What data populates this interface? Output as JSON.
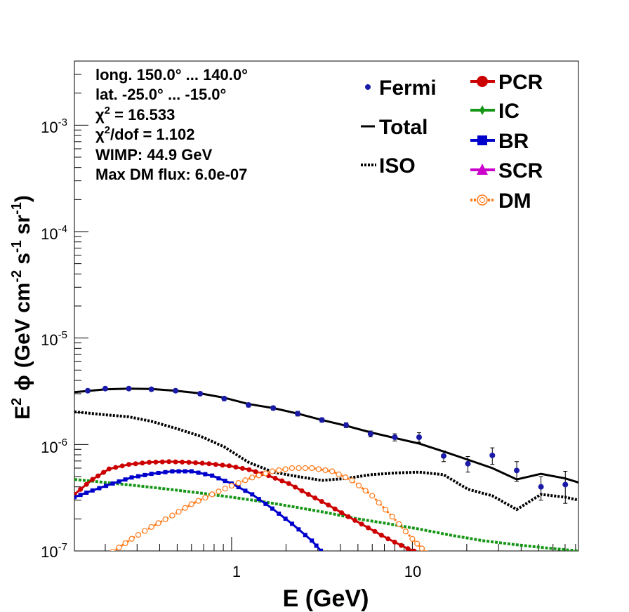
{
  "chart_data": {
    "type": "line",
    "xscale": "log",
    "yscale": "log",
    "xlim": [
      0.135,
      83
    ],
    "ylim": [
      1e-07,
      0.004
    ],
    "xlabel": "E (GeV)",
    "ylabel": {
      "prefix": "E",
      "sup1": "2",
      "phi": "ϕ",
      "gev": "(GeV cm",
      "sup2": "-2",
      "s": "s",
      "sup3": "-1",
      "sr": "sr",
      "sup4": "-1",
      "close": ")"
    },
    "x_ticks": [
      {
        "v": 1,
        "label": "1"
      },
      {
        "v": 10,
        "label": "10"
      }
    ],
    "y_ticks": [
      {
        "v": 1e-07,
        "base": "10",
        "exp": "-7"
      },
      {
        "v": 1e-06,
        "base": "10",
        "exp": "-6"
      },
      {
        "v": 1e-05,
        "base": "10",
        "exp": "-5"
      },
      {
        "v": 0.0001,
        "base": "10",
        "exp": "-4"
      },
      {
        "v": 0.001,
        "base": "10",
        "exp": "-3"
      }
    ],
    "info": {
      "line1": "long. 150.0° ... 140.0°",
      "line2": "lat. -25.0° ... -15.0°",
      "chi": "χ",
      "chi_sup": "2",
      "chi2_value": " = 16.533",
      "chi2dof_value": "/dof = 1.102",
      "wimp": "WIMP: 44.9 GeV",
      "maxdm": "Max DM flux: 6.0e-07"
    },
    "legend": {
      "fermi": "Fermi",
      "total": "Total",
      "iso": "ISO",
      "pcr": "PCR",
      "ic": "IC",
      "br": "BR",
      "scr": "SCR",
      "dm": "DM"
    },
    "colors": {
      "fermi": "#1a1aa8",
      "total": "#000000",
      "iso": "#000000",
      "pcr": "#cc0000",
      "ic": "#169616",
      "br": "#0000cc",
      "scr": "#cc00cc",
      "dm": "#ff7a1a"
    },
    "fermi": [
      {
        "x": 0.16,
        "y": 3.2e-06,
        "err": 1.2e-07
      },
      {
        "x": 0.2,
        "y": 3.35e-06,
        "err": 1.2e-07
      },
      {
        "x": 0.27,
        "y": 3.35e-06,
        "err": 1.2e-07
      },
      {
        "x": 0.36,
        "y": 3.3e-06,
        "err": 1.2e-07
      },
      {
        "x": 0.49,
        "y": 3.2e-06,
        "err": 1.2e-07
      },
      {
        "x": 0.67,
        "y": 3e-06,
        "err": 1.2e-07
      },
      {
        "x": 0.91,
        "y": 2.7e-06,
        "err": 1.2e-07
      },
      {
        "x": 1.24,
        "y": 2.35e-06,
        "err": 1e-07
      },
      {
        "x": 1.7,
        "y": 2.2e-06,
        "err": 1e-07
      },
      {
        "x": 2.32,
        "y": 1.95e-06,
        "err": 1e-07
      },
      {
        "x": 3.16,
        "y": 1.7e-06,
        "err": 8e-08
      },
      {
        "x": 4.3,
        "y": 1.52e-06,
        "err": 8e-08
      },
      {
        "x": 5.87,
        "y": 1.26e-06,
        "err": 8e-08
      },
      {
        "x": 8.0,
        "y": 1.17e-06,
        "err": 9e-08
      },
      {
        "x": 10.9,
        "y": 1.17e-06,
        "err": 1.2e-07
      },
      {
        "x": 14.9,
        "y": 7.8e-07,
        "err": 9e-08
      },
      {
        "x": 20.3,
        "y": 6.6e-07,
        "err": 1.1e-07
      },
      {
        "x": 27.7,
        "y": 7.9e-07,
        "err": 1.4e-07
      },
      {
        "x": 37.8,
        "y": 5.7e-07,
        "err": 1.2e-07
      },
      {
        "x": 51.5,
        "y": 4e-07,
        "err": 1e-07
      },
      {
        "x": 70.2,
        "y": 4.2e-07,
        "err": 1.4e-07
      }
    ],
    "total": [
      [
        0.135,
        3.1e-06
      ],
      [
        0.2,
        3.3e-06
      ],
      [
        0.27,
        3.35e-06
      ],
      [
        0.36,
        3.32e-06
      ],
      [
        0.49,
        3.2e-06
      ],
      [
        0.67,
        3.02e-06
      ],
      [
        0.91,
        2.75e-06
      ],
      [
        1.24,
        2.4e-06
      ],
      [
        1.7,
        2.2e-06
      ],
      [
        2.32,
        1.95e-06
      ],
      [
        3.16,
        1.7e-06
      ],
      [
        4.3,
        1.5e-06
      ],
      [
        5.87,
        1.3e-06
      ],
      [
        8.0,
        1.15e-06
      ],
      [
        10.9,
        1.02e-06
      ],
      [
        14.9,
        8.6e-07
      ],
      [
        20.3,
        7.2e-07
      ],
      [
        27.7,
        6e-07
      ],
      [
        37.8,
        4.7e-07
      ],
      [
        51.5,
        5.3e-07
      ],
      [
        70.2,
        4.8e-07
      ],
      [
        83,
        4.4e-07
      ]
    ],
    "iso": [
      [
        0.135,
        2.03e-06
      ],
      [
        0.2,
        1.9e-06
      ],
      [
        0.27,
        1.82e-06
      ],
      [
        0.36,
        1.65e-06
      ],
      [
        0.49,
        1.42e-06
      ],
      [
        0.67,
        1.2e-06
      ],
      [
        0.91,
        9.5e-07
      ],
      [
        1.24,
        6.8e-07
      ],
      [
        1.7,
        5.5e-07
      ],
      [
        2.32,
        5e-07
      ],
      [
        3.16,
        4.6e-07
      ],
      [
        4.3,
        4.8e-07
      ],
      [
        5.87,
        5.2e-07
      ],
      [
        8.0,
        5.4e-07
      ],
      [
        10.9,
        5.5e-07
      ],
      [
        14.9,
        5.2e-07
      ],
      [
        20.3,
        3.8e-07
      ],
      [
        27.7,
        3.3e-07
      ],
      [
        37.8,
        2.45e-07
      ],
      [
        51.5,
        3.4e-07
      ],
      [
        70.2,
        3.2e-07
      ],
      [
        83,
        3e-07
      ]
    ],
    "pcr": [
      [
        0.135,
        3.4e-07
      ],
      [
        0.17,
        4.7e-07
      ],
      [
        0.21,
        5.9e-07
      ],
      [
        0.27,
        6.5e-07
      ],
      [
        0.35,
        6.8e-07
      ],
      [
        0.45,
        6.9e-07
      ],
      [
        0.58,
        6.8e-07
      ],
      [
        0.75,
        6.6e-07
      ],
      [
        0.97,
        6.3e-07
      ],
      [
        1.25,
        5.8e-07
      ],
      [
        1.6,
        5.1e-07
      ],
      [
        2.07,
        4.3e-07
      ],
      [
        2.66,
        3.4e-07
      ],
      [
        3.43,
        2.7e-07
      ],
      [
        4.42,
        2.1e-07
      ],
      [
        5.7,
        1.65e-07
      ],
      [
        7.34,
        1.3e-07
      ],
      [
        9.45,
        1.05e-07
      ],
      [
        12.0,
        9e-08
      ]
    ],
    "ic": [
      [
        0.135,
        4.7e-07
      ],
      [
        0.2,
        4.4e-07
      ],
      [
        0.3,
        4.1e-07
      ],
      [
        0.45,
        3.8e-07
      ],
      [
        0.67,
        3.5e-07
      ],
      [
        1.0,
        3.2e-07
      ],
      [
        1.5,
        2.9e-07
      ],
      [
        2.2,
        2.6e-07
      ],
      [
        3.3,
        2.3e-07
      ],
      [
        5.0,
        2e-07
      ],
      [
        7.4,
        1.8e-07
      ],
      [
        11,
        1.6e-07
      ],
      [
        16.5,
        1.4e-07
      ],
      [
        24.5,
        1.25e-07
      ],
      [
        36.5,
        1.15e-07
      ],
      [
        54,
        1.07e-07
      ],
      [
        83,
        1e-07
      ]
    ],
    "br": [
      [
        0.135,
        3.2e-07
      ],
      [
        0.17,
        3.7e-07
      ],
      [
        0.22,
        4.3e-07
      ],
      [
        0.28,
        4.9e-07
      ],
      [
        0.36,
        5.3e-07
      ],
      [
        0.47,
        5.6e-07
      ],
      [
        0.6,
        5.6e-07
      ],
      [
        0.78,
        5.1e-07
      ],
      [
        1.0,
        4.3e-07
      ],
      [
        1.3,
        3.4e-07
      ],
      [
        1.68,
        2.5e-07
      ],
      [
        2.16,
        1.8e-07
      ],
      [
        2.78,
        1.25e-07
      ],
      [
        3.3,
        9e-08
      ]
    ],
    "dm": [
      [
        0.22,
        9.8e-08
      ],
      [
        0.28,
        1.3e-07
      ],
      [
        0.36,
        1.68e-07
      ],
      [
        0.47,
        2.15e-07
      ],
      [
        0.6,
        2.75e-07
      ],
      [
        0.78,
        3.4e-07
      ],
      [
        1.0,
        4.1e-07
      ],
      [
        1.3,
        4.9e-07
      ],
      [
        1.68,
        5.6e-07
      ],
      [
        2.16,
        6e-07
      ],
      [
        2.78,
        6e-07
      ],
      [
        3.6,
        5.6e-07
      ],
      [
        4.64,
        4.6e-07
      ],
      [
        6.0,
        3.3e-07
      ],
      [
        7.74,
        2.1e-07
      ],
      [
        10.0,
        1.3e-07
      ],
      [
        12.0,
        9.5e-08
      ]
    ]
  }
}
